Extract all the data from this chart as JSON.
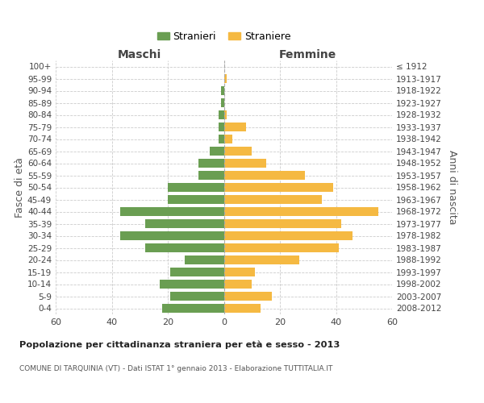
{
  "age_groups": [
    "0-4",
    "5-9",
    "10-14",
    "15-19",
    "20-24",
    "25-29",
    "30-34",
    "35-39",
    "40-44",
    "45-49",
    "50-54",
    "55-59",
    "60-64",
    "65-69",
    "70-74",
    "75-79",
    "80-84",
    "85-89",
    "90-94",
    "95-99",
    "100+"
  ],
  "birth_years": [
    "2008-2012",
    "2003-2007",
    "1998-2002",
    "1993-1997",
    "1988-1992",
    "1983-1987",
    "1978-1982",
    "1973-1977",
    "1968-1972",
    "1963-1967",
    "1958-1962",
    "1953-1957",
    "1948-1952",
    "1943-1947",
    "1938-1942",
    "1933-1937",
    "1928-1932",
    "1923-1927",
    "1918-1922",
    "1913-1917",
    "≤ 1912"
  ],
  "maschi": [
    22,
    19,
    23,
    19,
    14,
    28,
    37,
    28,
    37,
    20,
    20,
    9,
    9,
    5,
    2,
    2,
    2,
    1,
    1,
    0,
    0
  ],
  "femmine": [
    13,
    17,
    10,
    11,
    27,
    41,
    46,
    42,
    55,
    35,
    39,
    29,
    15,
    10,
    3,
    8,
    1,
    0,
    0,
    1,
    0
  ],
  "color_maschi": "#6a9e52",
  "color_femmine": "#f5b942",
  "title": "Popolazione per cittadinanza straniera per età e sesso - 2013",
  "subtitle": "COMUNE DI TARQUINIA (VT) - Dati ISTAT 1° gennaio 2013 - Elaborazione TUTTITALIA.IT",
  "ylabel_left": "Fasce di età",
  "ylabel_right": "Anni di nascita",
  "xlabel_left": "Maschi",
  "xlabel_right": "Femmine",
  "legend_maschi": "Stranieri",
  "legend_femmine": "Straniere",
  "xlim": 60,
  "background_color": "#ffffff",
  "grid_color": "#cccccc"
}
